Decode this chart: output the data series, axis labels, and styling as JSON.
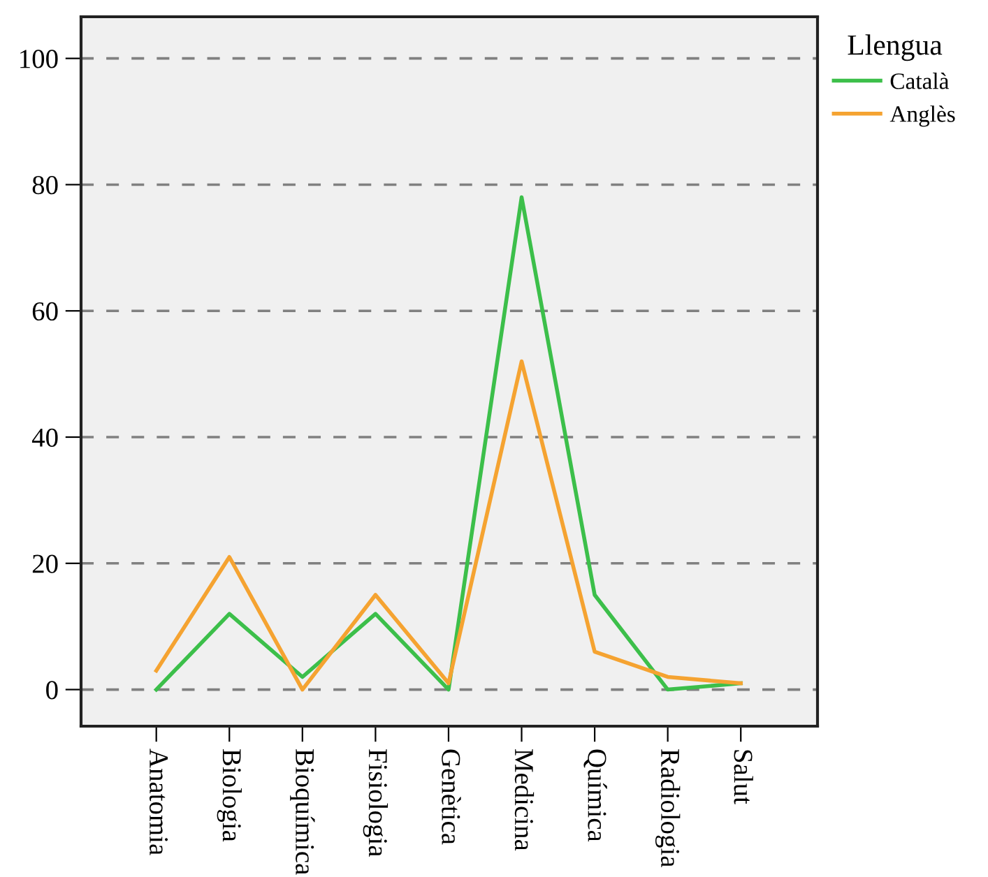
{
  "chart_data": {
    "type": "line",
    "legend_title": "Llengua",
    "categories": [
      "Anatomia",
      "Biologia",
      "Bioquímica",
      "Fisiologia",
      "Genètica",
      "Medicina",
      "Química",
      "Radiologia",
      "Salut"
    ],
    "series": [
      {
        "name": "Català",
        "color": "#3cbf4a",
        "values": [
          0,
          12,
          2,
          12,
          0,
          78,
          15,
          0,
          1
        ]
      },
      {
        "name": "Anglès",
        "color": "#f5a331",
        "values": [
          3,
          21,
          0,
          15,
          1,
          52,
          6,
          2,
          1
        ]
      }
    ],
    "ylim": [
      -5.8,
      106.6
    ],
    "yticks": [
      0,
      20,
      40,
      60,
      80,
      100
    ],
    "grid": "y",
    "legend": "top right",
    "marker": "none",
    "line_style": "solid"
  }
}
